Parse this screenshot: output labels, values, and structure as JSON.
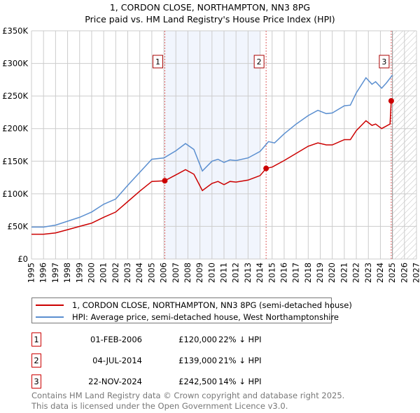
{
  "chart_data": {
    "type": "line",
    "title": "1, CORDON CLOSE, NORTHAMPTON, NN3 8PG",
    "subtitle": "Price paid vs. HM Land Registry's House Price Index (HPI)",
    "xlim": [
      1995,
      2027
    ],
    "ylim": [
      0,
      350000
    ],
    "x_ticks": [
      1995,
      1996,
      1997,
      1998,
      1999,
      2000,
      2001,
      2002,
      2003,
      2004,
      2005,
      2006,
      2007,
      2008,
      2009,
      2010,
      2011,
      2012,
      2013,
      2014,
      2015,
      2016,
      2017,
      2018,
      2019,
      2020,
      2021,
      2022,
      2023,
      2024,
      2025,
      2026,
      2027
    ],
    "y_ticks": [
      0,
      50000,
      100000,
      150000,
      200000,
      250000,
      300000,
      350000
    ],
    "y_tick_labels": [
      "£0",
      "£50K",
      "£100K",
      "£150K",
      "£200K",
      "£250K",
      "£300K",
      "£350K"
    ],
    "grid": true,
    "shaded_range": [
      2006.08,
      2013.96
    ],
    "hatched_from": 2025.0,
    "series": [
      {
        "name": "1, CORDON CLOSE, NORTHAMPTON, NN3 8PG (semi-detached house)",
        "color": "#cc0000",
        "x": [
          1995,
          1996,
          1997,
          1998,
          1999,
          2000,
          2001,
          2002,
          2003,
          2004,
          2005,
          2006.08,
          2007,
          2007.8,
          2008.5,
          2009.2,
          2010,
          2010.5,
          2011,
          2011.5,
          2012,
          2013,
          2014,
          2014.5,
          2015,
          2016,
          2017,
          2018,
          2018.8,
          2019.5,
          2020,
          2021,
          2021.5,
          2022,
          2022.8,
          2023.3,
          2023.6,
          2024.1,
          2024.8,
          2024.9
        ],
        "y": [
          38000,
          38000,
          40000,
          45000,
          50000,
          55000,
          64000,
          72000,
          88000,
          104000,
          119000,
          120000,
          129000,
          137000,
          130000,
          105000,
          116000,
          119000,
          114000,
          119000,
          118000,
          121000,
          128000,
          139000,
          141000,
          151000,
          162000,
          173000,
          178000,
          175000,
          175000,
          183000,
          183000,
          197000,
          212000,
          205000,
          207000,
          200000,
          207000,
          242500
        ]
      },
      {
        "name": "HPI: Average price, semi-detached house, West Northamptonshire",
        "color": "#5b8fd0",
        "x": [
          1995,
          1996,
          1997,
          1998,
          1999,
          2000,
          2001,
          2002,
          2003,
          2004,
          2005,
          2006,
          2007,
          2007.8,
          2008.5,
          2009.2,
          2010,
          2010.5,
          2011,
          2011.5,
          2012,
          2013,
          2014,
          2014.7,
          2015.2,
          2016,
          2017,
          2018,
          2018.8,
          2019.5,
          2020,
          2021,
          2021.5,
          2022,
          2022.8,
          2023.3,
          2023.6,
          2024.1,
          2024.5,
          2025
        ],
        "y": [
          49000,
          49000,
          52000,
          58000,
          64000,
          72000,
          84000,
          92000,
          113000,
          133000,
          153000,
          155000,
          166000,
          177000,
          168000,
          135000,
          150000,
          153000,
          148000,
          152000,
          151000,
          155000,
          165000,
          180000,
          178000,
          192000,
          207000,
          220000,
          228000,
          223000,
          224000,
          235000,
          236000,
          255000,
          278000,
          268000,
          272000,
          262000,
          270000,
          282000
        ]
      }
    ],
    "sales": [
      {
        "marker": "1",
        "x": 2006.08,
        "y": 120000,
        "date": "01-FEB-2006",
        "price": "£120,000",
        "hpi": "22% ↓ HPI"
      },
      {
        "marker": "2",
        "x": 2014.5,
        "y": 139000,
        "date": "04-JUL-2014",
        "price": "£139,000",
        "hpi": "21% ↓ HPI"
      },
      {
        "marker": "3",
        "x": 2024.9,
        "y": 242500,
        "date": "22-NOV-2024",
        "price": "£242,500",
        "hpi": "14% ↓ HPI"
      }
    ]
  },
  "legend": {
    "property": "1, CORDON CLOSE, NORTHAMPTON, NN3 8PG (semi-detached house)",
    "hpi": "HPI: Average price, semi-detached house, West Northamptonshire"
  },
  "footer": {
    "line1": "Contains HM Land Registry data © Crown copyright and database right 2025.",
    "line2": "This data is licensed under the Open Government Licence v3.0."
  }
}
